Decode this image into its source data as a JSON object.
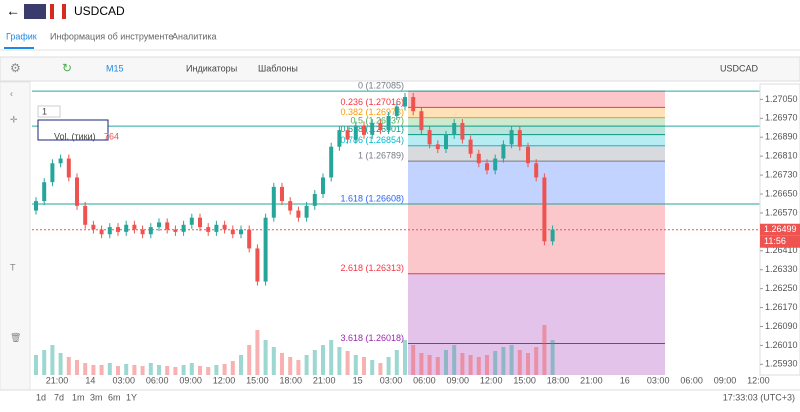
{
  "header": {
    "title": "USDCAD"
  },
  "tabs": [
    "График",
    "Информация об инструменте",
    "Аналитика"
  ],
  "toolbar": {
    "timeframe": "M15",
    "indicators": "Индикаторы",
    "templates": "Шаблоны",
    "symbol": "USDCAD"
  },
  "chart": {
    "type": "candlestick",
    "volume_label": "Vol. (тики)",
    "volume_value": "764",
    "pane_badge": "1",
    "ylim": [
      1.25885,
      1.27115
    ],
    "yticks": [
      {
        "value": 1.2705,
        "label": "1.27050"
      },
      {
        "value": 1.2697,
        "label": "1.26970"
      },
      {
        "value": 1.2689,
        "label": "1.26890"
      },
      {
        "value": 1.2681,
        "label": "1.26810"
      },
      {
        "value": 1.2673,
        "label": "1.26730"
      },
      {
        "value": 1.2665,
        "label": "1.26650"
      },
      {
        "value": 1.2657,
        "label": "1.26570"
      },
      {
        "value": 1.2641,
        "label": "1.26410"
      },
      {
        "value": 1.2633,
        "label": "1.26330"
      },
      {
        "value": 1.2625,
        "label": "1.26250"
      },
      {
        "value": 1.2617,
        "label": "1.26170"
      },
      {
        "value": 1.2609,
        "label": "1.26090"
      },
      {
        "value": 1.2601,
        "label": "1.26010"
      },
      {
        "value": 1.2593,
        "label": "1.25930"
      }
    ],
    "current_price": {
      "value": 1.26499,
      "label": "1.26499"
    },
    "countdown": "11:56",
    "xticks": [
      "21:00",
      "14",
      "03:00",
      "06:00",
      "09:00",
      "12:00",
      "15:00",
      "18:00",
      "21:00",
      "15",
      "03:00",
      "06:00",
      "09:00",
      "12:00",
      "15:00",
      "18:00",
      "21:00",
      "16",
      "03:00",
      "06:00",
      "09:00",
      "12:00"
    ],
    "closes": [
      1.2662,
      1.267,
      1.2678,
      1.268,
      1.2672,
      1.266,
      1.2652,
      1.265,
      1.2648,
      1.2651,
      1.2649,
      1.2652,
      1.265,
      1.2648,
      1.2651,
      1.2653,
      1.265,
      1.2649,
      1.2652,
      1.2655,
      1.2651,
      1.2649,
      1.2652,
      1.265,
      1.2648,
      1.265,
      1.2642,
      1.2628,
      1.2655,
      1.2668,
      1.2662,
      1.2658,
      1.2655,
      1.266,
      1.2665,
      1.2672,
      1.2685,
      1.2692,
      1.2688,
      1.2694,
      1.269,
      1.2695,
      1.2692,
      1.2698,
      1.2702,
      1.2706,
      1.27,
      1.2692,
      1.2686,
      1.2684,
      1.269,
      1.2695,
      1.2688,
      1.2682,
      1.2678,
      1.2675,
      1.268,
      1.2686,
      1.2692,
      1.2685,
      1.2678,
      1.2672,
      1.2645,
      1.265
    ],
    "volumes": [
      20,
      25,
      30,
      22,
      18,
      15,
      12,
      10,
      10,
      12,
      9,
      11,
      10,
      9,
      12,
      10,
      9,
      8,
      10,
      12,
      9,
      8,
      10,
      11,
      14,
      20,
      30,
      45,
      35,
      28,
      22,
      18,
      15,
      20,
      25,
      30,
      35,
      28,
      24,
      20,
      18,
      15,
      12,
      18,
      25,
      35,
      30,
      22,
      20,
      18,
      25,
      30,
      22,
      20,
      18,
      20,
      24,
      28,
      30,
      25,
      22,
      28,
      50,
      35
    ],
    "fib": [
      {
        "price": 1.27085,
        "label": "0 (1.27085)",
        "color": "#787b86"
      },
      {
        "price": 1.27016,
        "label": "0.236 (1.27016)",
        "color": "#f23645"
      },
      {
        "price": 1.26973,
        "label": "0.382 (1.26973)",
        "color": "#ff9800"
      },
      {
        "price": 1.26937,
        "label": "0.5 (1.26937)",
        "color": "#4caf50"
      },
      {
        "price": 1.26901,
        "label": "0.618 (1.26901)",
        "color": "#089981"
      },
      {
        "price": 1.26854,
        "label": "0.786 (1.26854)",
        "color": "#00bcd4"
      },
      {
        "price": 1.26789,
        "label": "1 (1.26789)",
        "color": "#787b86"
      },
      {
        "price": 1.26608,
        "label": "1.618 (1.26608)",
        "color": "#2962ff"
      },
      {
        "price": 1.26313,
        "label": "2.618 (1.26313)",
        "color": "#f23645"
      },
      {
        "price": 1.26018,
        "label": "3.618 (1.26018)",
        "color": "#9c27b0"
      }
    ]
  },
  "ranges": [
    "1d",
    "7d",
    "1m",
    "3m",
    "6m",
    "1Y"
  ],
  "clock": "17:33:03 (UTC+3)"
}
